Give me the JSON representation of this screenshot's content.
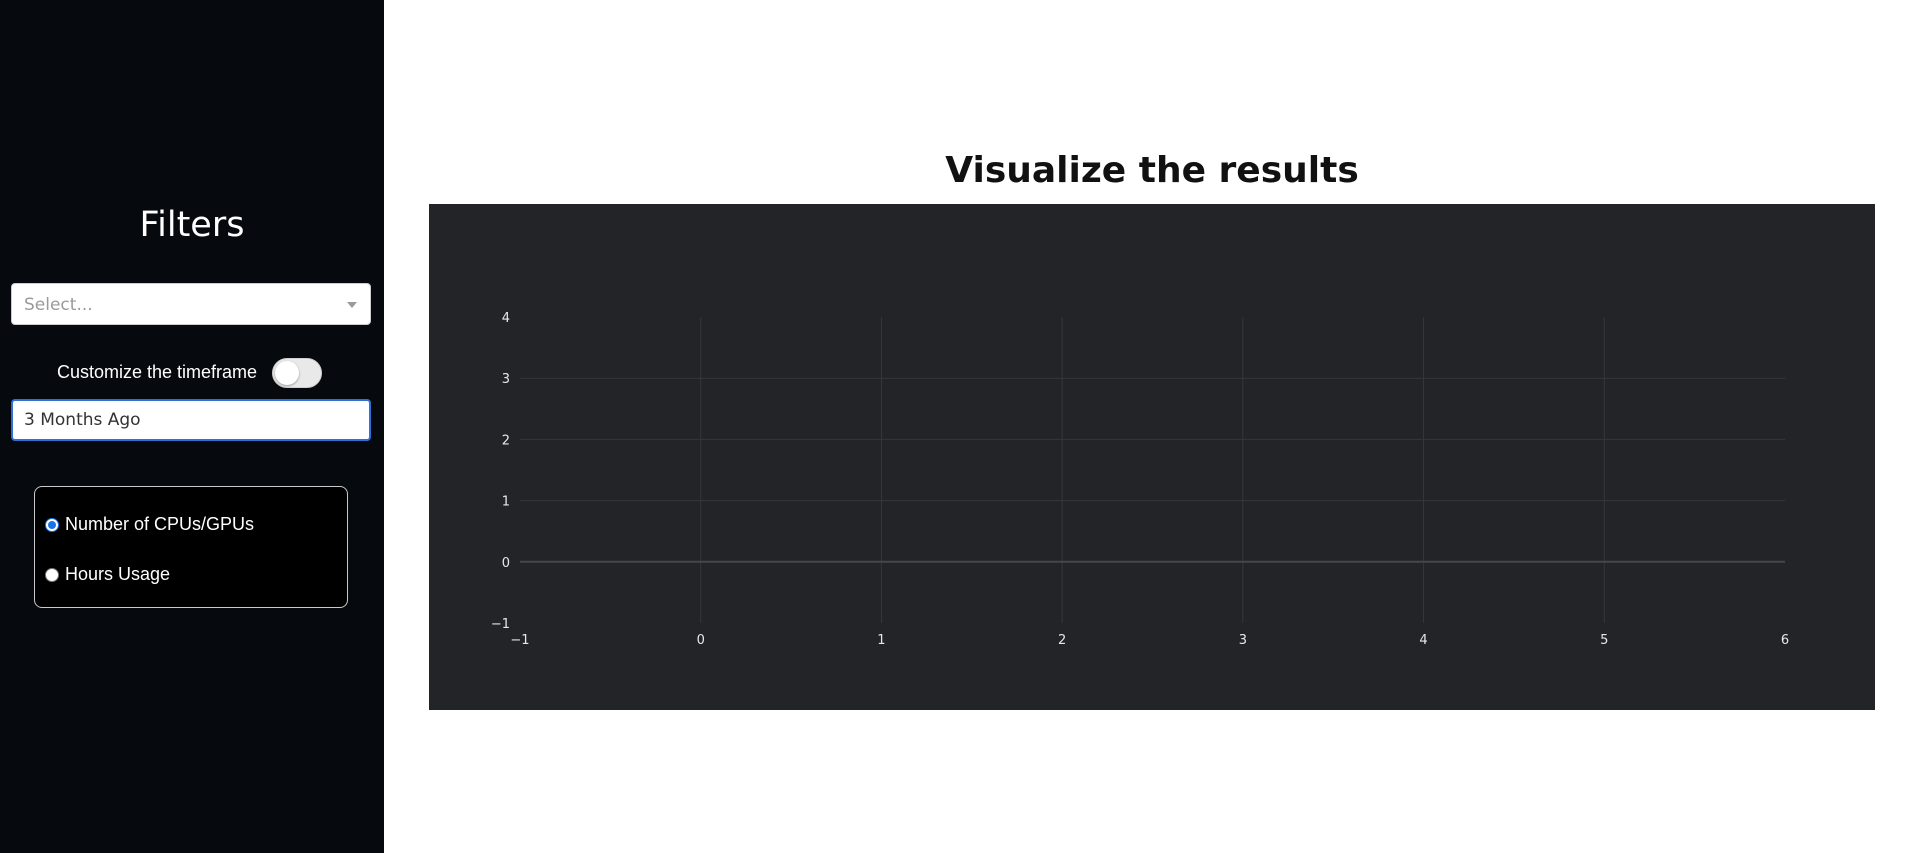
{
  "sidebar": {
    "title": "Filters",
    "select_placeholder": "Select...",
    "timeframe_label": "Customize the timeframe",
    "timeframe_toggle_on": false,
    "timeframe_value": "3 Months Ago",
    "radio_options": [
      {
        "label": "Number of CPUs/GPUs",
        "checked": true
      },
      {
        "label": "Hours Usage",
        "checked": false
      }
    ]
  },
  "main": {
    "title": "Visualize the results"
  },
  "colors": {
    "sidebar_bg": "#060a0e",
    "chart_bg": "#222428",
    "accent": "#2f6fdc"
  },
  "chart_data": {
    "type": "line",
    "series": [],
    "x_ticks": [
      "−1",
      "0",
      "1",
      "2",
      "3",
      "4",
      "5",
      "6"
    ],
    "y_ticks": [
      "−1",
      "0",
      "1",
      "2",
      "3",
      "4"
    ],
    "xlim": [
      -1,
      6
    ],
    "ylim": [
      -1,
      4
    ],
    "grid": true,
    "title": "",
    "xlabel": "",
    "ylabel": ""
  }
}
